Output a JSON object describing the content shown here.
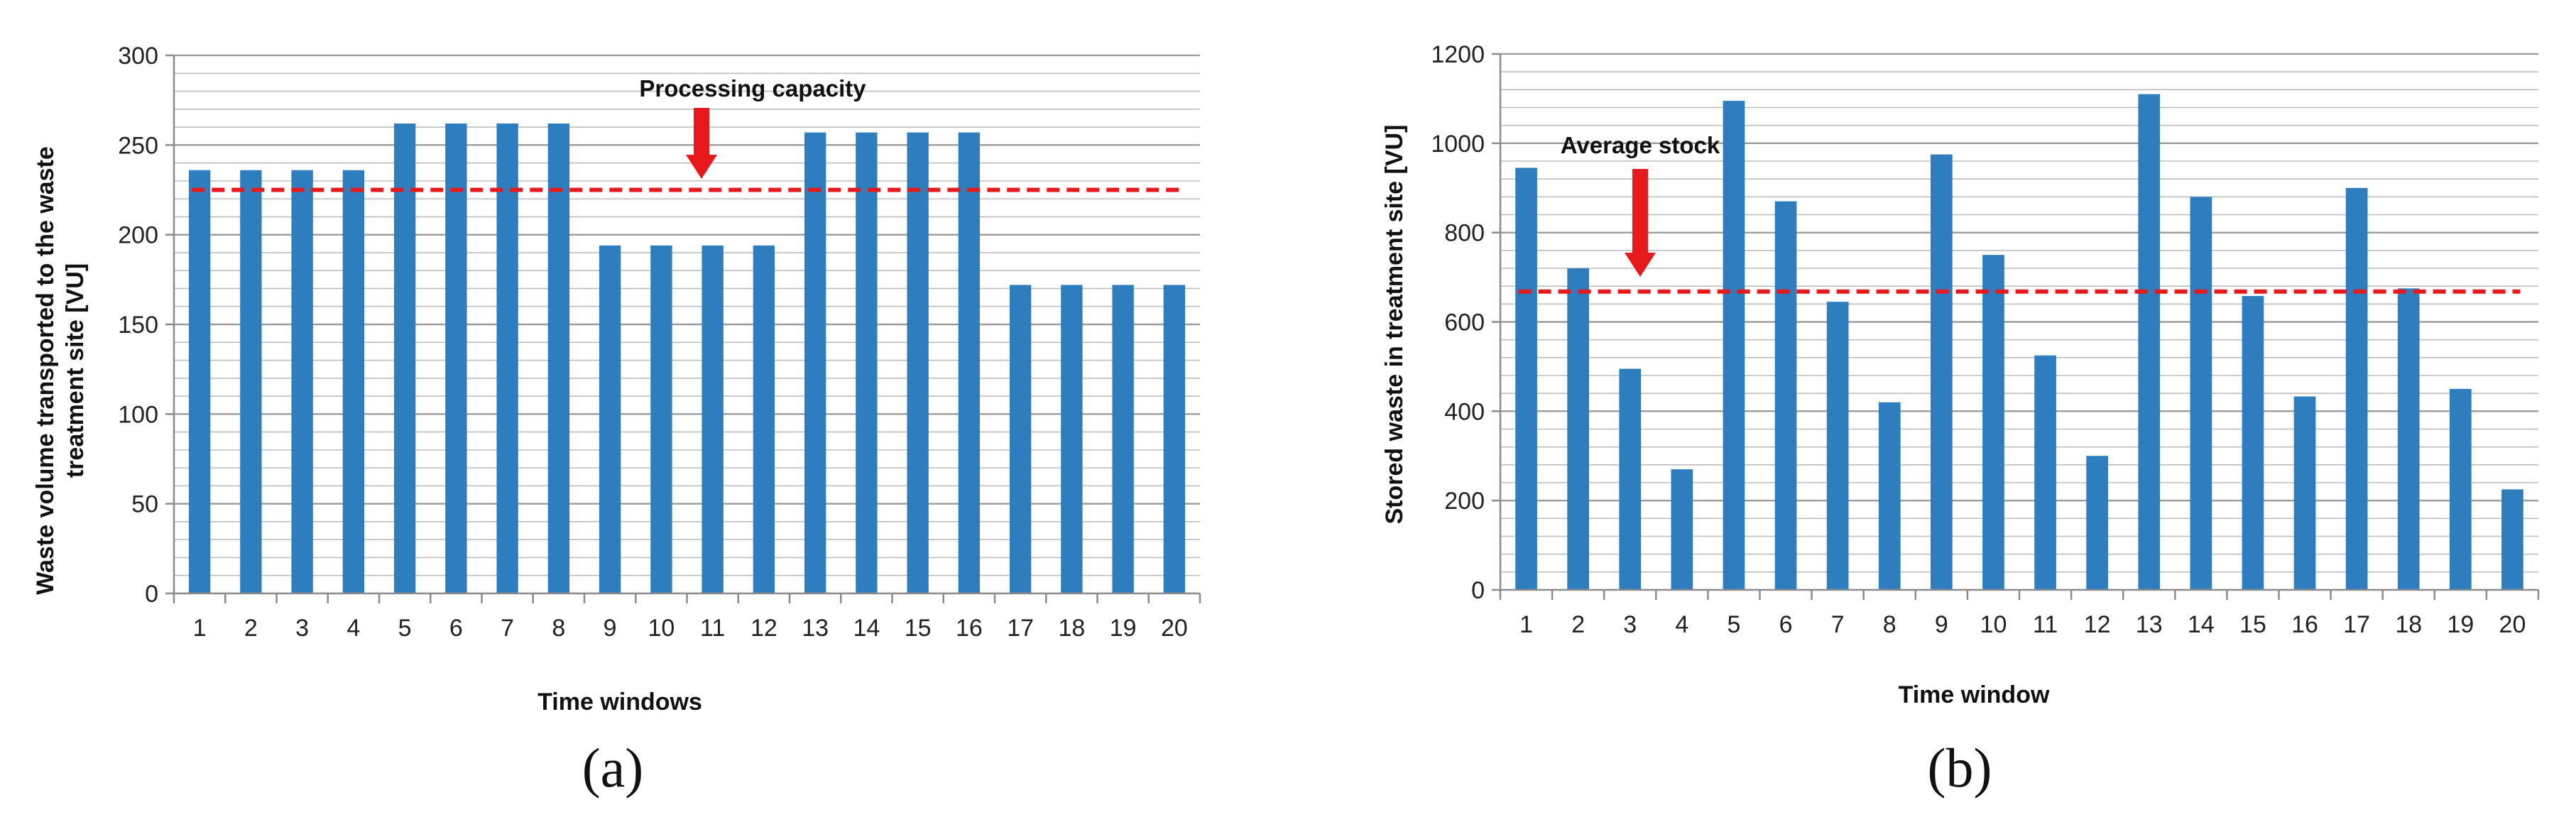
{
  "charts": [
    {
      "panel_label": "(a)",
      "annotation": "Processing capacity",
      "chart_data": {
        "type": "bar",
        "categories": [
          "1",
          "2",
          "3",
          "4",
          "5",
          "6",
          "7",
          "8",
          "9",
          "10",
          "11",
          "12",
          "13",
          "14",
          "15",
          "16",
          "17",
          "18",
          "19",
          "20"
        ],
        "values": [
          236,
          236,
          236,
          236,
          262,
          262,
          262,
          262,
          194,
          194,
          194,
          194,
          257,
          257,
          257,
          257,
          172,
          172,
          172,
          172
        ],
        "reference_line": 225,
        "title": "",
        "xlabel": "Time windows",
        "ylabel": "Waste volume transported to the waste treatment site [VU]",
        "ylabel_lines": [
          "Waste volume transported to the waste",
          "treatment site [VU]"
        ],
        "ylim": [
          0,
          300
        ],
        "yticks": [
          0,
          50,
          100,
          150,
          200,
          250,
          300
        ],
        "grid": true,
        "bar_color": "#2e7ebf",
        "line_color": "#e8191b"
      }
    },
    {
      "panel_label": "(b)",
      "annotation": "Average stock",
      "chart_data": {
        "type": "bar",
        "categories": [
          "1",
          "2",
          "3",
          "4",
          "5",
          "6",
          "7",
          "8",
          "9",
          "10",
          "11",
          "12",
          "13",
          "14",
          "15",
          "16",
          "17",
          "18",
          "19",
          "20"
        ],
        "values": [
          945,
          720,
          495,
          270,
          1095,
          870,
          645,
          420,
          975,
          750,
          525,
          300,
          1110,
          880,
          658,
          433,
          900,
          675,
          450,
          225
        ],
        "reference_line": 668,
        "title": "",
        "xlabel": "Time window",
        "ylabel": "Stored waste in treatment site [VU]",
        "ylabel_lines": [
          "Stored waste in treatment site [VU]"
        ],
        "ylim": [
          0,
          1200
        ],
        "yticks": [
          0,
          200,
          400,
          600,
          800,
          1000,
          1200
        ],
        "grid": true,
        "bar_color": "#2e7ebf",
        "line_color": "#e8191b"
      }
    }
  ]
}
